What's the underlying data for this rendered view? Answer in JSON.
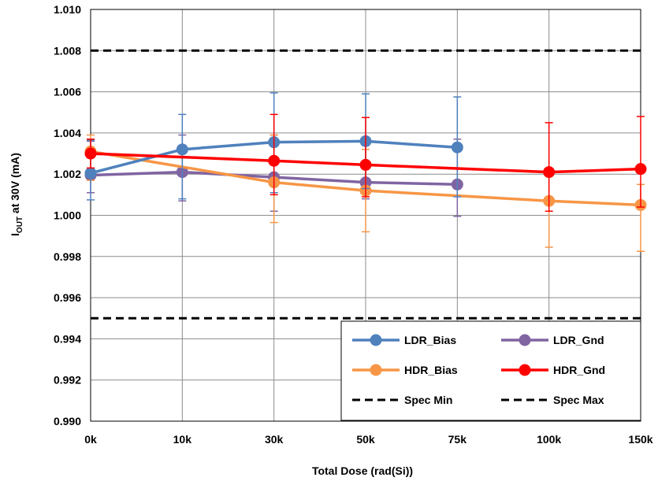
{
  "chart_data": {
    "type": "line",
    "title": "",
    "xlabel": "Total Dose (rad(Si))",
    "ylabel": {
      "prefix": "I",
      "subscript": "OUT",
      "suffix": " at 30V (mA)"
    },
    "categories": [
      "0k",
      "10k",
      "30k",
      "50k",
      "75k",
      "100k",
      "150k"
    ],
    "ylim": [
      0.99,
      1.01
    ],
    "yticks": [
      "0.990",
      "0.992",
      "0.994",
      "0.996",
      "0.998",
      "1.000",
      "1.002",
      "1.004",
      "1.006",
      "1.008",
      "1.010"
    ],
    "grid": true,
    "legend_position": "bottom-right",
    "series": [
      {
        "name": "LDR_Bias",
        "color": "#4f81bd",
        "style": "line-marker",
        "values": [
          1.00205,
          1.0032,
          1.00355,
          1.0036,
          1.0033,
          null,
          null
        ],
        "err_high": [
          1.00365,
          1.0049,
          1.00595,
          1.0059,
          1.00575,
          null,
          null
        ],
        "err_low": [
          1.00075,
          1.0008,
          1.0011,
          1.0013,
          1.0009,
          null,
          null
        ]
      },
      {
        "name": "LDR_Gnd",
        "color": "#8064a2",
        "style": "line-marker",
        "values": [
          1.00195,
          1.0021,
          1.00185,
          1.0016,
          1.0015,
          null,
          null
        ],
        "err_high": [
          1.0036,
          1.0039,
          1.0039,
          1.0034,
          1.0037,
          null,
          null
        ],
        "err_low": [
          1.0011,
          1.0007,
          1.0002,
          1.0008,
          0.99995,
          null,
          null
        ]
      },
      {
        "name": "HDR_Bias",
        "color": "#f79646",
        "style": "line-marker",
        "values": [
          1.0031,
          null,
          1.0016,
          1.0012,
          null,
          1.0007,
          1.0005
        ],
        "err_high": [
          1.0039,
          null,
          1.0039,
          1.0032,
          null,
          1.0021,
          1.0015
        ],
        "err_low": [
          1.0017,
          null,
          0.99965,
          0.9992,
          null,
          0.99845,
          0.99825
        ]
      },
      {
        "name": "HDR_Gnd",
        "color": "#ff0000",
        "style": "line-marker",
        "values": [
          1.003,
          null,
          1.00265,
          1.00245,
          null,
          1.0021,
          1.00225
        ],
        "err_high": [
          1.0037,
          null,
          1.0049,
          1.00475,
          null,
          1.0045,
          1.0048
        ],
        "err_low": [
          1.0023,
          null,
          1.001,
          1.0009,
          null,
          1.0002,
          1.0004
        ]
      },
      {
        "name": "Spec Min",
        "color": "#000000",
        "style": "dashed",
        "values": [
          0.995,
          0.995,
          0.995,
          0.995,
          0.995,
          0.995,
          0.995
        ]
      },
      {
        "name": "Spec Max",
        "color": "#000000",
        "style": "dashed",
        "values": [
          1.008,
          1.008,
          1.008,
          1.008,
          1.008,
          1.008,
          1.008
        ]
      }
    ],
    "legend_order": [
      "LDR_Bias",
      "LDR_Gnd",
      "HDR_Bias",
      "HDR_Gnd",
      "Spec Min",
      "Spec Max"
    ]
  }
}
